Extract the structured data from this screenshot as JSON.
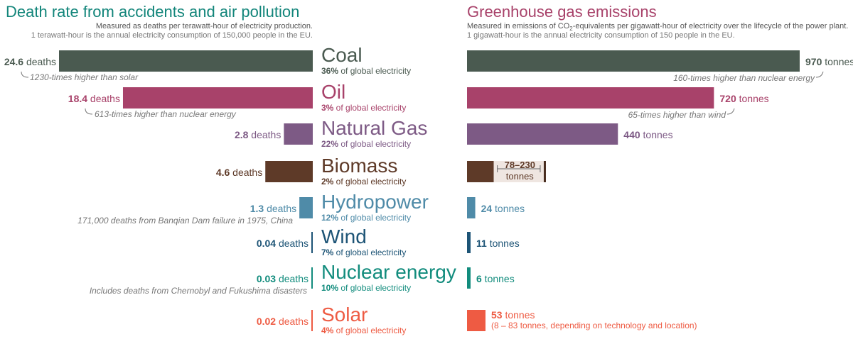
{
  "left_panel": {
    "title": "Death rate from accidents and air pollution",
    "subtitle": "Measured as deaths per terawatt-hour of electricity production.",
    "note": "1 terawatt-hour is the annual electricity consumption of 150,000 people in the EU."
  },
  "right_panel": {
    "title": "Greenhouse gas emissions",
    "subtitle_pre": "Measured in emissions of CO",
    "subtitle_sub": "2",
    "subtitle_post": "-equivalents per gigawatt-hour of electricity over the lifecycle of the power plant.",
    "note": "1 gigawatt-hour is the annual electricity consumption of 150 people in the EU."
  },
  "share_suffix": "of global electricity",
  "chart_data": [
    {
      "type": "bar",
      "title": "Death rate from accidents and air pollution",
      "unit_label": "deaths",
      "categories": [
        "Coal",
        "Oil",
        "Natural Gas",
        "Biomass",
        "Hydropower",
        "Wind",
        "Nuclear energy",
        "Solar"
      ],
      "values": [
        24.6,
        18.4,
        2.8,
        4.6,
        1.3,
        0.04,
        0.03,
        0.02
      ],
      "value_labels": [
        "24.6",
        "18.4",
        "2.8",
        "4.6",
        "1.3",
        "0.04",
        "0.03",
        "0.02"
      ],
      "shares": [
        "36%",
        "3%",
        "22%",
        "2%",
        "12%",
        "7%",
        "10%",
        "4%"
      ],
      "colors": [
        "#4a5a50",
        "#a8426a",
        "#7d5a85",
        "#5e3a28",
        "#4f8ba8",
        "#1d5476",
        "#128c7d",
        "#ee5b43"
      ],
      "annotations": [
        {
          "category": "Coal",
          "text": "1230-times higher than solar"
        },
        {
          "category": "Oil",
          "text": "613-times higher than nuclear energy"
        },
        {
          "category": "Hydropower",
          "text": "171,000 deaths from Banqian Dam failure in 1975, China"
        },
        {
          "category": "Nuclear energy",
          "text": "Includes deaths from Chernobyl and Fukushima disasters"
        }
      ]
    },
    {
      "type": "bar",
      "title": "Greenhouse gas emissions",
      "unit_label": "tonnes",
      "categories": [
        "Coal",
        "Oil",
        "Natural Gas",
        "Biomass",
        "Hydropower",
        "Wind",
        "Nuclear energy",
        "Solar"
      ],
      "values": [
        970,
        720,
        440,
        78,
        24,
        11,
        6,
        53
      ],
      "value_labels": [
        "970",
        "720",
        "440",
        "78–230",
        "24",
        "11",
        "6",
        "53"
      ],
      "ranges": [
        {
          "category": "Biomass",
          "low": 78,
          "high": 230
        }
      ],
      "annotations": [
        {
          "category": "Coal",
          "text": "160-times higher than nuclear energy"
        },
        {
          "category": "Oil",
          "text": "65-times higher than wind"
        },
        {
          "category": "Solar",
          "text": "(8 – 83 tonnes, depending on technology and location)"
        }
      ]
    }
  ]
}
